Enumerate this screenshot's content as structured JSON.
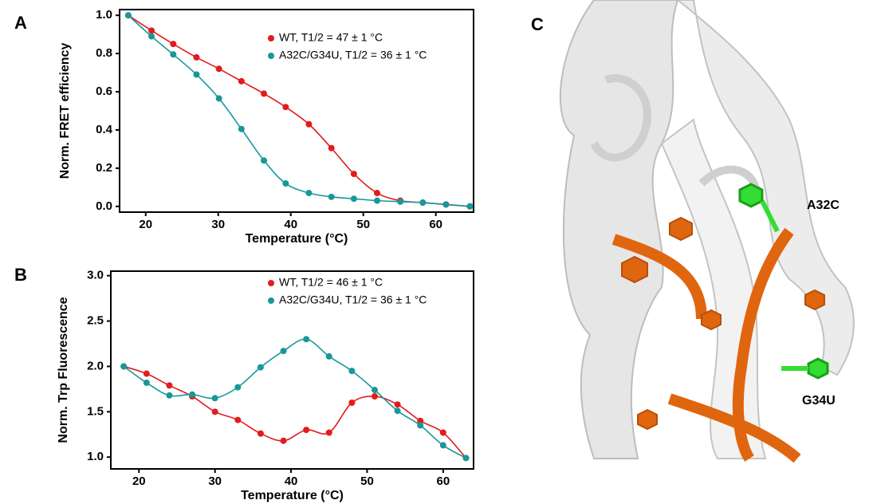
{
  "panels": [
    "A",
    "B",
    "C"
  ],
  "structure_labels": [
    "A32C",
    "G34U"
  ],
  "chart_data": [
    {
      "type": "scatter",
      "fit_line": true,
      "x_label": "Temperature (°C)",
      "y_label": "Norm.  FRET efficiency",
      "xlim": [
        16.4,
        65.2
      ],
      "xticks": [
        20,
        30,
        40,
        50,
        60
      ],
      "ylim": [
        -0.03,
        1.03
      ],
      "yticks": [
        {
          "value": 0,
          "label": "0.0"
        },
        0.2,
        0.4,
        0.6,
        0.8,
        {
          "value": 1,
          "label": "1.0"
        }
      ],
      "series": [
        {
          "name": "WT, T1/2 = 47 ± 1 °C",
          "color": "#e41a1c",
          "x": [
            17.6,
            20.8,
            23.8,
            27.0,
            30.1,
            33.2,
            36.3,
            39.3,
            42.5,
            45.6,
            48.7,
            51.9,
            55.1,
            58.2,
            61.4,
            64.7
          ],
          "values": [
            1.0,
            0.92,
            0.85,
            0.78,
            0.72,
            0.655,
            0.59,
            0.52,
            0.43,
            0.305,
            0.17,
            0.07,
            0.03,
            0.02,
            0.01,
            0.0
          ]
        },
        {
          "name": "A32C/G34U, T1/2 = 36 ± 1 °C",
          "color": "#17989a",
          "x": [
            17.6,
            20.8,
            23.8,
            27.0,
            30.1,
            33.2,
            36.3,
            39.3,
            42.5,
            45.6,
            48.7,
            51.9,
            55.1,
            58.2,
            61.4,
            64.7
          ],
          "values": [
            1.0,
            0.89,
            0.795,
            0.69,
            0.565,
            0.405,
            0.24,
            0.12,
            0.07,
            0.05,
            0.04,
            0.03,
            0.025,
            0.02,
            0.01,
            0.0
          ]
        }
      ]
    },
    {
      "type": "scatter",
      "fit_line": true,
      "x_label": "Temperature (°C)",
      "y_label": "Norm.  Trp Fluorescence",
      "xlim": [
        16.3,
        64.0
      ],
      "xticks": [
        20,
        30,
        40,
        50,
        60
      ],
      "ylim": [
        0.87,
        3.05
      ],
      "yticks": [
        {
          "value": 1,
          "label": "1.0"
        },
        1.5,
        {
          "value": 2,
          "label": "2.0"
        },
        2.5,
        {
          "value": 3,
          "label": "3.0"
        }
      ],
      "series": [
        {
          "name": "WT, T1/2 = 46 ± 1 °C",
          "color": "#e41a1c",
          "x": [
            18,
            21,
            24,
            27,
            30,
            33,
            36,
            39,
            42,
            45,
            48,
            51,
            54,
            57,
            60,
            63
          ],
          "values": [
            2.0,
            1.92,
            1.79,
            1.67,
            1.5,
            1.41,
            1.26,
            1.18,
            1.3,
            1.27,
            1.6,
            1.67,
            1.58,
            1.4,
            1.27,
            0.99
          ]
        },
        {
          "name": "A32C/G34U, T1/2 = 36 ± 1 °C",
          "color": "#17989a",
          "x": [
            18,
            21,
            24,
            27,
            30,
            33,
            36,
            39,
            42,
            45,
            48,
            51,
            54,
            57,
            60,
            63
          ],
          "values": [
            2.0,
            1.82,
            1.68,
            1.69,
            1.65,
            1.77,
            1.99,
            2.17,
            2.3,
            2.11,
            1.95,
            1.74,
            1.51,
            1.35,
            1.13,
            0.99
          ]
        }
      ]
    }
  ]
}
